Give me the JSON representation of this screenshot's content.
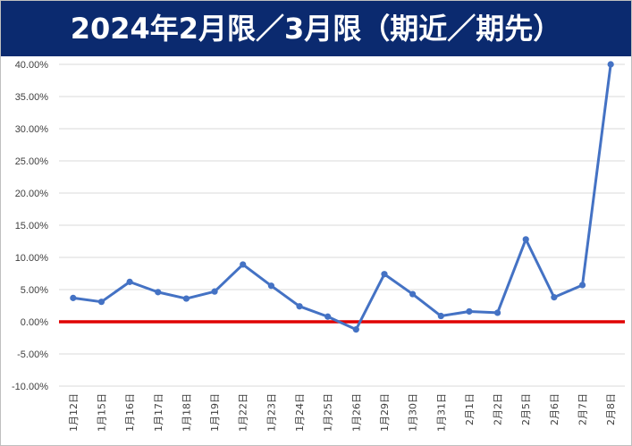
{
  "chart_data": {
    "type": "line",
    "title": "2024年2月限／3月限（期近／期先）",
    "categories": [
      "1月12日",
      "1月15日",
      "1月16日",
      "1月17日",
      "1月18日",
      "1月19日",
      "1月22日",
      "1月23日",
      "1月24日",
      "1月25日",
      "1月26日",
      "1月29日",
      "1月30日",
      "1月31日",
      "2月1日",
      "2月2日",
      "2月5日",
      "2月6日",
      "2月7日",
      "2月8日"
    ],
    "series": [
      {
        "values": [
          3.7,
          3.1,
          6.2,
          4.6,
          3.6,
          4.7,
          8.9,
          5.6,
          2.4,
          0.8,
          -1.2,
          7.4,
          4.3,
          0.9,
          1.6,
          1.4,
          12.8,
          3.8,
          5.7,
          40.0
        ],
        "color": "#4472c4"
      }
    ],
    "reference_line": {
      "value": 0,
      "color": "#e00000"
    },
    "ylim": [
      -10,
      40
    ],
    "yticks": [
      "-10.00%",
      "-5.00%",
      "0.00%",
      "5.00%",
      "10.00%",
      "15.00%",
      "20.00%",
      "25.00%",
      "30.00%",
      "35.00%",
      "40.00%"
    ],
    "grid": true,
    "xlabel": "",
    "ylabel": ""
  }
}
